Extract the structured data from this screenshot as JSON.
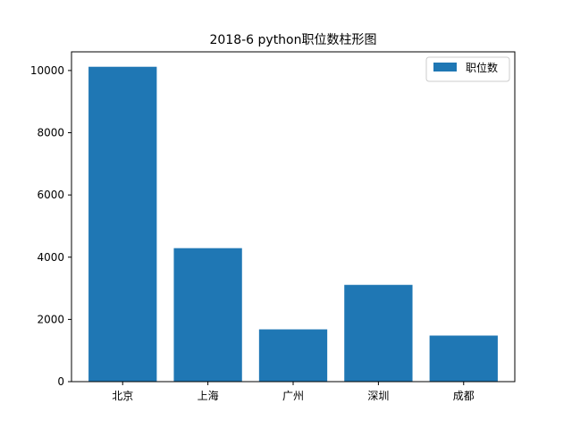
{
  "chart_data": {
    "type": "bar",
    "title": "2018-6 python职位数柱形图",
    "categories": [
      "北京",
      "上海",
      "广州",
      "深圳",
      "成都"
    ],
    "series": [
      {
        "name": "职位数",
        "values": [
          10120,
          4290,
          1680,
          3110,
          1480
        ]
      }
    ],
    "xlabel": "",
    "ylabel": "",
    "ylim": [
      0,
      10600
    ],
    "yticks": [
      0,
      2000,
      4000,
      6000,
      8000,
      10000
    ],
    "grid": false,
    "legend_position": "top-right",
    "colors": {
      "bar": "#1f77b4",
      "axis": "#000000",
      "background": "#ffffff"
    }
  }
}
